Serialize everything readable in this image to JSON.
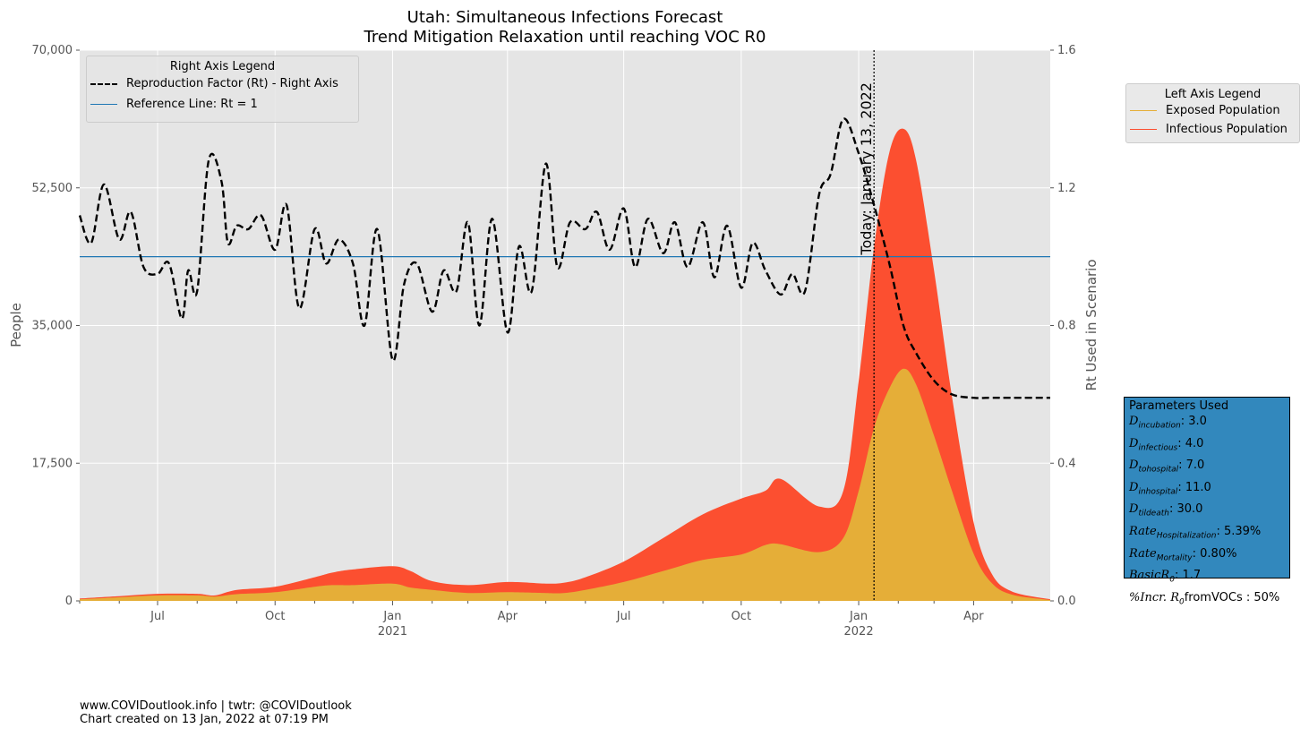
{
  "chart_data": {
    "type": "area",
    "title": "Utah: Simultaneous Infections Forecast",
    "subtitle": "Trend Mitigation Relaxation until reaching VOC R0",
    "ylabel": "People",
    "y2label": "Rt Used in Scenario",
    "ylim": [
      0,
      70000
    ],
    "y2lim": [
      0,
      1.6
    ],
    "xlim": [
      "2020-05-01",
      "2022-05-31"
    ],
    "yticks": [
      "0",
      "17,500",
      "35,000",
      "52,500",
      "70,000"
    ],
    "y2ticks": [
      "0.0",
      "0.4",
      "0.8",
      "1.2",
      "1.6"
    ],
    "xticks": [
      {
        "label": "Jul",
        "sub": "",
        "date": "2020-07-01"
      },
      {
        "label": "Oct",
        "sub": "",
        "date": "2020-10-01"
      },
      {
        "label": "Jan",
        "sub": "2021",
        "date": "2021-01-01"
      },
      {
        "label": "Apr",
        "sub": "",
        "date": "2021-04-01"
      },
      {
        "label": "Jul",
        "sub": "",
        "date": "2021-07-01"
      },
      {
        "label": "Oct",
        "sub": "",
        "date": "2021-10-01"
      },
      {
        "label": "Jan",
        "sub": "2022",
        "date": "2022-01-01"
      },
      {
        "label": "Apr",
        "sub": "",
        "date": "2022-04-01"
      }
    ],
    "today": {
      "date": "2022-01-13",
      "label": "Today: January 13, 2022"
    },
    "reference_line": 1.0,
    "colors": {
      "exposed": "#e5ae38",
      "infectious": "#fc4f30",
      "rt": "#000000",
      "reference": "#1f77b4",
      "plot_bg": "#e5e5e5"
    },
    "series": [
      {
        "name": "Exposed Population",
        "axis": "left",
        "x": [
          "2020-05-01",
          "2020-06-01",
          "2020-07-01",
          "2020-08-01",
          "2020-08-15",
          "2020-09-01",
          "2020-10-01",
          "2020-11-01",
          "2020-11-15",
          "2020-12-01",
          "2021-01-01",
          "2021-01-15",
          "2021-02-01",
          "2021-03-01",
          "2021-04-01",
          "2021-05-01",
          "2021-05-15",
          "2021-06-01",
          "2021-07-01",
          "2021-08-01",
          "2021-09-01",
          "2021-10-01",
          "2021-10-20",
          "2021-11-01",
          "2021-12-01",
          "2021-12-20",
          "2022-01-01",
          "2022-01-13",
          "2022-01-25",
          "2022-02-05",
          "2022-02-15",
          "2022-03-01",
          "2022-03-15",
          "2022-04-01",
          "2022-04-15",
          "2022-05-01",
          "2022-05-31"
        ],
        "values": [
          200,
          450,
          700,
          700,
          550,
          850,
          1100,
          1800,
          2000,
          2000,
          2200,
          1700,
          1400,
          1000,
          1100,
          1000,
          1000,
          1400,
          2400,
          3800,
          5200,
          5900,
          7100,
          7200,
          6200,
          8000,
          14000,
          22000,
          27000,
          29500,
          27500,
          21000,
          14000,
          6000,
          2300,
          800,
          100
        ]
      },
      {
        "name": "Infectious Population",
        "axis": "left",
        "x": [
          "2020-05-01",
          "2020-06-01",
          "2020-07-01",
          "2020-08-01",
          "2020-08-15",
          "2020-09-01",
          "2020-10-01",
          "2020-11-01",
          "2020-11-15",
          "2020-12-01",
          "2021-01-01",
          "2021-01-15",
          "2021-02-01",
          "2021-03-01",
          "2021-04-01",
          "2021-05-01",
          "2021-05-15",
          "2021-06-01",
          "2021-07-01",
          "2021-08-01",
          "2021-09-01",
          "2021-10-01",
          "2021-10-20",
          "2021-11-01",
          "2021-12-01",
          "2021-12-20",
          "2022-01-01",
          "2022-01-13",
          "2022-01-25",
          "2022-02-05",
          "2022-02-15",
          "2022-03-01",
          "2022-03-15",
          "2022-04-01",
          "2022-04-15",
          "2022-05-01",
          "2022-05-31"
        ],
        "values": [
          300,
          600,
          900,
          900,
          700,
          1400,
          1800,
          3000,
          3600,
          4000,
          4400,
          3800,
          2500,
          2000,
          2400,
          2200,
          2300,
          3000,
          5000,
          8000,
          11000,
          13000,
          14000,
          15500,
          12000,
          14000,
          28000,
          45000,
          57000,
          60000,
          56000,
          42000,
          26000,
          10000,
          3500,
          1200,
          200
        ]
      },
      {
        "name": "Reproduction Factor (Rt) - Right Axis",
        "axis": "right",
        "x": [
          "2020-05-01",
          "2020-05-10",
          "2020-05-20",
          "2020-06-01",
          "2020-06-10",
          "2020-06-20",
          "2020-07-01",
          "2020-07-10",
          "2020-07-20",
          "2020-07-25",
          "2020-08-01",
          "2020-08-10",
          "2020-08-20",
          "2020-08-25",
          "2020-09-01",
          "2020-09-10",
          "2020-09-20",
          "2020-10-01",
          "2020-10-10",
          "2020-10-20",
          "2020-11-01",
          "2020-11-10",
          "2020-11-20",
          "2020-12-01",
          "2020-12-10",
          "2020-12-20",
          "2021-01-01",
          "2021-01-10",
          "2021-01-20",
          "2021-02-01",
          "2021-02-10",
          "2021-02-20",
          "2021-03-01",
          "2021-03-10",
          "2021-03-20",
          "2021-04-01",
          "2021-04-10",
          "2021-04-20",
          "2021-05-01",
          "2021-05-10",
          "2021-05-20",
          "2021-06-01",
          "2021-06-10",
          "2021-06-20",
          "2021-07-01",
          "2021-07-10",
          "2021-07-20",
          "2021-08-01",
          "2021-08-10",
          "2021-08-20",
          "2021-09-01",
          "2021-09-10",
          "2021-09-20",
          "2021-10-01",
          "2021-10-10",
          "2021-10-20",
          "2021-11-01",
          "2021-11-10",
          "2021-11-20",
          "2021-12-01",
          "2021-12-10",
          "2021-12-20",
          "2022-01-01",
          "2022-01-13",
          "2022-01-25",
          "2022-02-05",
          "2022-02-15",
          "2022-03-01",
          "2022-03-15",
          "2022-04-01",
          "2022-04-15",
          "2022-05-01",
          "2022-05-31"
        ],
        "values": [
          1.12,
          1.04,
          1.21,
          1.05,
          1.13,
          0.97,
          0.95,
          0.98,
          0.82,
          0.96,
          0.9,
          1.28,
          1.22,
          1.04,
          1.09,
          1.08,
          1.12,
          1.02,
          1.15,
          0.85,
          1.08,
          0.98,
          1.05,
          0.98,
          0.8,
          1.08,
          0.7,
          0.92,
          0.98,
          0.84,
          0.96,
          0.9,
          1.1,
          0.8,
          1.11,
          0.78,
          1.03,
          0.9,
          1.27,
          0.97,
          1.1,
          1.08,
          1.13,
          1.02,
          1.14,
          0.97,
          1.11,
          1.01,
          1.1,
          0.97,
          1.1,
          0.94,
          1.09,
          0.91,
          1.04,
          0.96,
          0.89,
          0.95,
          0.9,
          1.18,
          1.24,
          1.4,
          1.3,
          1.15,
          0.98,
          0.8,
          0.72,
          0.64,
          0.6,
          0.59,
          0.59,
          0.59,
          0.59
        ]
      },
      {
        "name": "Reference Line: Rt = 1",
        "axis": "right",
        "value": 1.0
      }
    ],
    "legend_right_axis": {
      "title": "Right Axis Legend",
      "items": [
        "Reproduction Factor (Rt) - Right Axis",
        "Reference Line: Rt = 1"
      ]
    },
    "legend_left_axis": {
      "title": "Left Axis Legend",
      "items": [
        "Exposed Population",
        "Infectious Population"
      ]
    }
  },
  "parameters": {
    "title": "Parameters Used",
    "items": [
      {
        "label": "D",
        "sub": "incubation",
        "value": ": 3.0"
      },
      {
        "label": "D",
        "sub": "infectious",
        "value": ": 4.0"
      },
      {
        "label": "D",
        "sub": "tohospital",
        "value": ": 7.0"
      },
      {
        "label": "D",
        "sub": "inhospital",
        "value": ": 11.0"
      },
      {
        "label": "D",
        "sub": "tildeath",
        "value": ": 30.0"
      },
      {
        "label": "Rate",
        "sub": "Hospitalization",
        "value": ": 5.39%"
      },
      {
        "label": "Rate",
        "sub": "Mortality",
        "value": ": 0.80%"
      },
      {
        "label": "BasicR",
        "sub": "0",
        "value": ": 1.7"
      },
      {
        "label": "%Incr. R",
        "sub": "0",
        "value": "fromVOCs : 50%"
      }
    ]
  },
  "footer": {
    "line1": "www.COVIDoutlook.info | twtr: @COVIDoutlook",
    "line2": "Chart created on 13 Jan, 2022 at 07:19 PM"
  }
}
